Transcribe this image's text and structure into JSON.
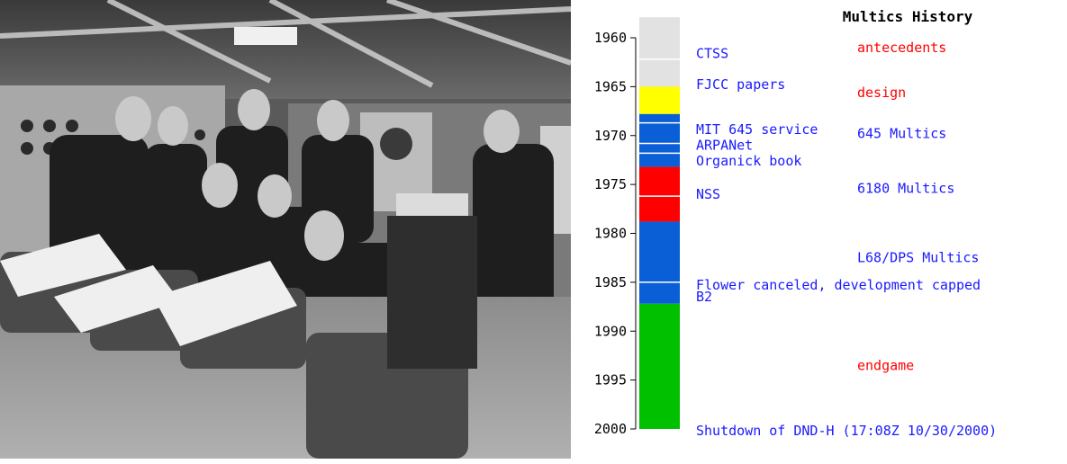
{
  "title": "Multics History",
  "colors": {
    "era_gray": "#e2e2e2",
    "era_yellow": "#ffff00",
    "era_blue": "#0a5fd6",
    "era_red": "#ff0000",
    "era_green": "#00c000",
    "event_text": "#1a1aff",
    "phase_red": "#ff0000",
    "phase_blue": "#1a1aff"
  },
  "axis": {
    "min": 1960,
    "max": 2000,
    "ticks": [
      "1960",
      "1965",
      "1970",
      "1975",
      "1980",
      "1985",
      "1990",
      "1995",
      "2000"
    ]
  },
  "bar_segments": [
    {
      "from": 1957.9,
      "to": 1965,
      "color": "era_gray"
    },
    {
      "from": 1965,
      "to": 1967.8,
      "color": "era_yellow"
    },
    {
      "from": 1967.8,
      "to": 1973.2,
      "color": "era_blue"
    },
    {
      "from": 1973.2,
      "to": 1978.8,
      "color": "era_red"
    },
    {
      "from": 1978.8,
      "to": 1987.2,
      "color": "era_blue"
    },
    {
      "from": 1987.2,
      "to": 2000,
      "color": "era_green"
    }
  ],
  "bar_dividers": [
    1962.2,
    1968.7,
    1970.8,
    1971.8,
    1976.2,
    1985.0
  ],
  "events": [
    {
      "label": "CTSS",
      "year": 1961.6
    },
    {
      "label": "FJCC papers",
      "year": 1964.8
    },
    {
      "label": "MIT 645 service",
      "year": 1969.4
    },
    {
      "label": "ARPANet",
      "year": 1971.0
    },
    {
      "label": "Organick book",
      "year": 1972.6
    },
    {
      "label": "NSS",
      "year": 1976.0
    },
    {
      "label": "Flower canceled, development capped",
      "year": 1985.3
    },
    {
      "label": "B2",
      "year": 1986.5
    },
    {
      "label": "Shutdown of DND-H (17:08Z 10/30/2000)",
      "year": 2000.2
    }
  ],
  "phases": [
    {
      "label": "antecedents",
      "year": 1961.0,
      "color": "phase_red"
    },
    {
      "label": "design",
      "year": 1965.6,
      "color": "phase_red"
    },
    {
      "label": "645 Multics",
      "year": 1969.8,
      "color": "phase_blue"
    },
    {
      "label": "6180 Multics",
      "year": 1975.4,
      "color": "phase_blue"
    },
    {
      "label": "L68/DPS Multics",
      "year": 1982.5,
      "color": "phase_blue"
    },
    {
      "label": "endgame",
      "year": 1993.5,
      "color": "phase_red"
    }
  ]
}
